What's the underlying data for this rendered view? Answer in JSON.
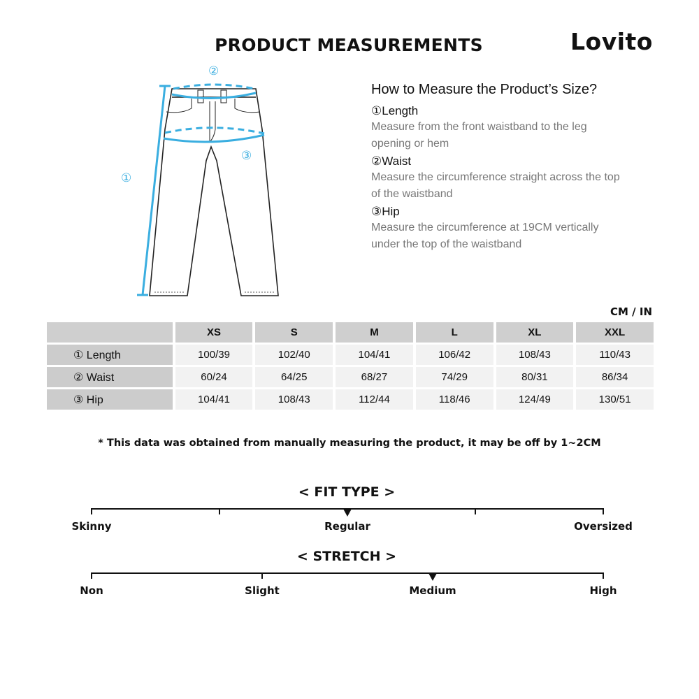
{
  "header": {
    "title": "PRODUCT MEASUREMENTS",
    "brand": "Lovito"
  },
  "diagram": {
    "markers": [
      "①",
      "②",
      "③"
    ],
    "accent_color": "#3aaee0"
  },
  "howto": {
    "heading": "How to Measure the Product’s Size?",
    "items": [
      {
        "title": "①Length",
        "desc": "Measure from the front waistband to the leg opening or hem"
      },
      {
        "title": "②Waist",
        "desc": "Measure the circumference straight across the top of the waistband"
      },
      {
        "title": "③Hip",
        "desc": "Measure the circumference at 19CM vertically under the top of the waistband"
      }
    ]
  },
  "table": {
    "unit": "CM / IN",
    "columns": [
      "XS",
      "S",
      "M",
      "L",
      "XL",
      "XXL"
    ],
    "rows": [
      {
        "label": "① Length",
        "values": [
          "100/39",
          "102/40",
          "104/41",
          "106/42",
          "108/43",
          "110/43"
        ]
      },
      {
        "label": "② Waist",
        "values": [
          "60/24",
          "64/25",
          "68/27",
          "74/29",
          "80/31",
          "86/34"
        ]
      },
      {
        "label": "③ Hip",
        "values": [
          "104/41",
          "108/43",
          "112/44",
          "118/46",
          "124/49",
          "130/51"
        ]
      }
    ]
  },
  "note": "* This data was obtained from manually measuring the product, it may be off by 1~2CM",
  "fit_type": {
    "title": "< FIT TYPE >",
    "labels": [
      "Skinny",
      "Regular",
      "Oversized"
    ],
    "tick_count": 5,
    "selected": "Regular",
    "level": 0.5
  },
  "stretch": {
    "title": "< STRETCH >",
    "labels": [
      "Non",
      "Slight",
      "Medium",
      "High"
    ],
    "tick_count": 4,
    "selected": "Medium",
    "level": 0.667
  }
}
